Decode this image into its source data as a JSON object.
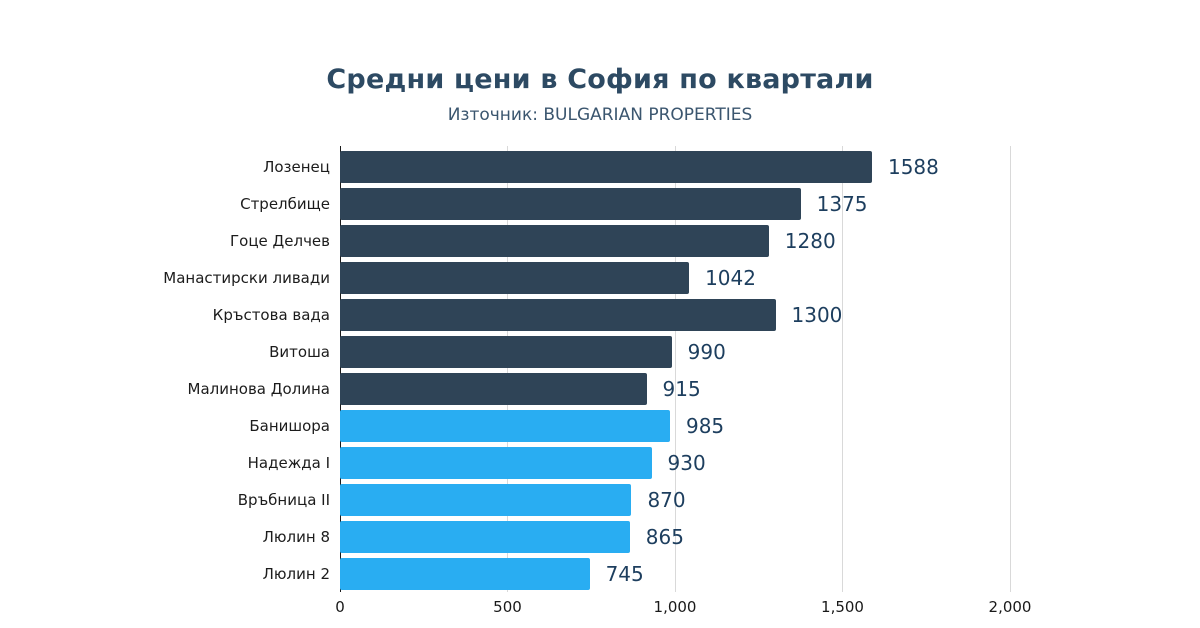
{
  "header": {
    "title": "Средни цени в София по квартали",
    "subtitle": "Източник: BULGARIAN PROPERTIES"
  },
  "chart_data": {
    "type": "bar",
    "orientation": "horizontal",
    "title": "Средни цени в София по квартали",
    "subtitle": "Източник: BULGARIAN PROPERTIES",
    "categories": [
      "Лозенец",
      "Стрелбище",
      "Гоце Делчев",
      "Манастирски ливади",
      "Кръстова вада",
      "Витоша",
      "Малинова Долина",
      "Банишора",
      "Надежда I",
      "Връбница II",
      "Люлин 8",
      "Люлин 2"
    ],
    "values": [
      1588,
      1375,
      1280,
      1042,
      1300,
      990,
      915,
      985,
      930,
      870,
      865,
      745
    ],
    "groups": [
      "dark",
      "dark",
      "dark",
      "dark",
      "dark",
      "dark",
      "dark",
      "light",
      "light",
      "light",
      "light",
      "light"
    ],
    "xlim": [
      0,
      2000
    ],
    "x_ticks": [
      "0",
      "500",
      "1,000",
      "1,500",
      "2,000"
    ],
    "grid": true,
    "legend": "none",
    "colors": {
      "dark_bar": "#2f4457",
      "light_bar": "#29adf2",
      "title": "#2d4a63",
      "subtitle": "#3b566f",
      "value_label": "#1d3e5e",
      "gridline": "#d9d9d9",
      "axis_line": "#1a1a1a",
      "background": "#ffffff"
    }
  }
}
